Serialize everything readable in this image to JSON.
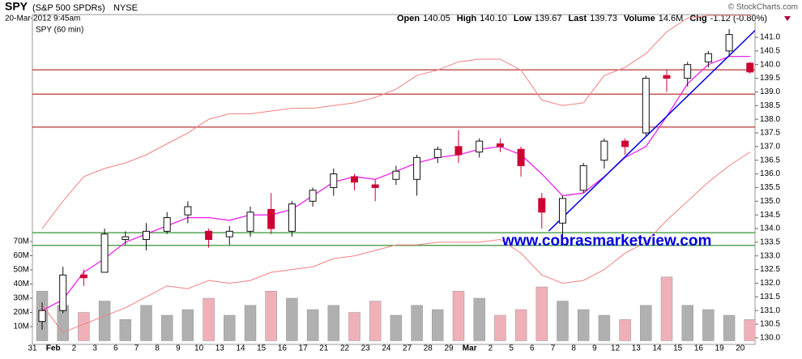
{
  "header": {
    "symbol": "SPY",
    "name": "(S&P 500 SPDRs)",
    "exchange": "NYSE",
    "date": "20-Mar-2012 9:45am",
    "source": "© StockCharts.com",
    "stats": [
      [
        "Open",
        "140.05"
      ],
      [
        "High",
        "140.10"
      ],
      [
        "Low",
        "139.67"
      ],
      [
        "Last",
        "139.73"
      ],
      [
        "Volume",
        "14.6M"
      ],
      [
        "Chg",
        "-1.12 (-0.80%)"
      ]
    ]
  },
  "chart_data": {
    "type": "candlestick",
    "legend": "SPY (60 min)",
    "annotation": "www.cobrasmarketview.com",
    "categories": [
      "31",
      "Feb",
      "2",
      "3",
      "6",
      "7",
      "8",
      "9",
      "10",
      "13",
      "14",
      "15",
      "16",
      "17",
      "21",
      "22",
      "23",
      "24",
      "27",
      "28",
      "29",
      "Mar",
      "2",
      "5",
      "6",
      "7",
      "8",
      "9",
      "12",
      "13",
      "14",
      "15",
      "16",
      "19",
      "20"
    ],
    "open": [
      130.6,
      131.0,
      132.3,
      132.4,
      133.6,
      133.6,
      133.9,
      134.5,
      133.9,
      133.7,
      133.9,
      134.7,
      133.9,
      135.0,
      135.5,
      135.9,
      135.6,
      135.8,
      135.8,
      136.6,
      137.0,
      136.8,
      137.1,
      136.9,
      135.1,
      134.2,
      135.4,
      136.5,
      137.2,
      137.5,
      139.6,
      139.5,
      140.1,
      140.5,
      140.05
    ],
    "high": [
      131.3,
      132.6,
      132.5,
      134.0,
      133.9,
      134.2,
      134.6,
      135.0,
      134.0,
      134.1,
      134.8,
      135.3,
      135.0,
      135.5,
      136.2,
      136.0,
      135.8,
      136.3,
      136.7,
      137.0,
      137.6,
      137.3,
      137.3,
      137.0,
      135.3,
      135.2,
      136.4,
      137.3,
      137.3,
      139.6,
      139.8,
      140.1,
      140.5,
      141.3,
      140.1
    ],
    "low": [
      130.3,
      130.9,
      131.9,
      132.4,
      133.4,
      133.2,
      133.8,
      134.2,
      133.3,
      133.4,
      133.7,
      133.8,
      133.7,
      134.8,
      135.2,
      135.4,
      135.0,
      135.6,
      135.2,
      136.4,
      136.4,
      136.6,
      136.8,
      135.9,
      134.0,
      133.7,
      135.3,
      136.2,
      136.7,
      137.4,
      139.0,
      139.2,
      139.9,
      140.3,
      139.67
    ],
    "close": [
      131.0,
      132.3,
      132.2,
      133.8,
      133.7,
      133.9,
      134.4,
      134.8,
      133.6,
      133.9,
      134.6,
      134.0,
      134.9,
      135.4,
      136.0,
      135.7,
      135.5,
      136.1,
      136.6,
      136.9,
      136.7,
      137.2,
      137.0,
      136.3,
      134.6,
      135.1,
      136.3,
      137.2,
      137.0,
      139.5,
      139.5,
      140.0,
      140.4,
      141.1,
      139.73
    ],
    "up_color": "#111111",
    "down_color": "#cc0033",
    "volume": [
      35,
      25,
      20,
      28,
      15,
      25,
      18,
      22,
      30,
      18,
      25,
      35,
      30,
      22,
      25,
      20,
      28,
      18,
      25,
      22,
      35,
      30,
      18,
      22,
      38,
      28,
      22,
      18,
      15,
      25,
      45,
      25,
      22,
      18,
      15
    ],
    "volume_up_color": "#b0b0b0",
    "volume_down_color": "#f0b0b8",
    "overlays": [
      {
        "color": "#ee22ee",
        "values": [
          131.0,
          131.4,
          132.4,
          132.9,
          133.5,
          133.8,
          134.1,
          134.4,
          134.4,
          134.3,
          134.5,
          134.5,
          134.7,
          135.2,
          135.7,
          135.9,
          135.8,
          136.1,
          136.4,
          136.6,
          136.7,
          136.9,
          137.0,
          136.7,
          136.0,
          135.2,
          135.3,
          135.9,
          136.6,
          137.0,
          138.1,
          139.3,
          140.0,
          140.3,
          140.3
        ]
      },
      {
        "color": "#f08080",
        "values": [
          134.0,
          135.0,
          135.9,
          136.2,
          136.4,
          136.7,
          137.1,
          137.5,
          138.0,
          138.2,
          138.2,
          138.3,
          138.4,
          138.4,
          138.5,
          138.6,
          138.8,
          139.1,
          139.6,
          139.8,
          140.1,
          140.2,
          140.2,
          139.8,
          138.7,
          138.5,
          138.6,
          139.6,
          139.9,
          140.4,
          141.2,
          141.7,
          141.8,
          141.8,
          141.8
        ]
      },
      {
        "color": "#f08080",
        "values": [
          131.2,
          130.2,
          130.5,
          130.8,
          131.1,
          131.5,
          131.9,
          131.8,
          132.1,
          132.0,
          132.1,
          132.4,
          132.5,
          132.6,
          132.9,
          133.0,
          133.2,
          133.4,
          133.4,
          133.5,
          133.5,
          133.5,
          133.6,
          133.1,
          132.3,
          132.0,
          132.1,
          132.5,
          133.1,
          133.5,
          134.3,
          135.0,
          135.7,
          136.3,
          136.8
        ]
      }
    ],
    "hlines": [
      {
        "value": 139.81,
        "color": "#aa0000"
      },
      {
        "value": 138.92,
        "color": "#aa0000"
      },
      {
        "value": 137.71,
        "color": "#aa0000"
      },
      {
        "value": 133.85,
        "color": "#007700"
      },
      {
        "value": 133.38,
        "color": "#007700"
      }
    ],
    "trendline": {
      "color": "#0000ee",
      "x": [
        24.8,
        34.94
      ],
      "y": [
        133.91,
        141.42
      ]
    },
    "ylim": [
      129.76,
      141.83
    ],
    "yticks": [
      {
        "value": 130,
        "label": "130.0"
      },
      {
        "value": 130.5,
        "label": "130.5"
      },
      {
        "value": 131,
        "label": "131.0"
      },
      {
        "value": 131.5,
        "label": "131.5"
      },
      {
        "value": 132,
        "label": "132.0"
      },
      {
        "value": 132.5,
        "label": "132.5"
      },
      {
        "value": 133,
        "label": "133.0"
      },
      {
        "value": 133.5,
        "label": "133.5"
      },
      {
        "value": 134,
        "label": "134.0"
      },
      {
        "value": 134.5,
        "label": "134.5"
      },
      {
        "value": 135,
        "label": "135.0"
      },
      {
        "value": 135.5,
        "label": "135.5"
      },
      {
        "value": 136,
        "label": "136.0"
      },
      {
        "value": 136.5,
        "label": "136.5"
      },
      {
        "value": 137,
        "label": "137.0"
      },
      {
        "value": 137.5,
        "label": "137.5"
      },
      {
        "value": 138,
        "label": "138.0"
      },
      {
        "value": 138.5,
        "label": "138.5"
      },
      {
        "value": 139,
        "label": "139.0"
      },
      {
        "value": 139.5,
        "label": "139.5"
      },
      {
        "value": 140,
        "label": "140.0"
      },
      {
        "value": 140.5,
        "label": "140.5"
      },
      {
        "value": 141,
        "label": "141.0"
      }
    ],
    "y2lim": [
      0,
      80
    ],
    "y2ticks": [
      {
        "value": 10,
        "label": "10M"
      },
      {
        "value": 20,
        "label": "20M"
      },
      {
        "value": 30,
        "label": "30M"
      },
      {
        "value": 40,
        "label": "40M"
      },
      {
        "value": 50,
        "label": "50M"
      },
      {
        "value": 60,
        "label": "60M"
      },
      {
        "value": 70,
        "label": "70M"
      }
    ]
  }
}
